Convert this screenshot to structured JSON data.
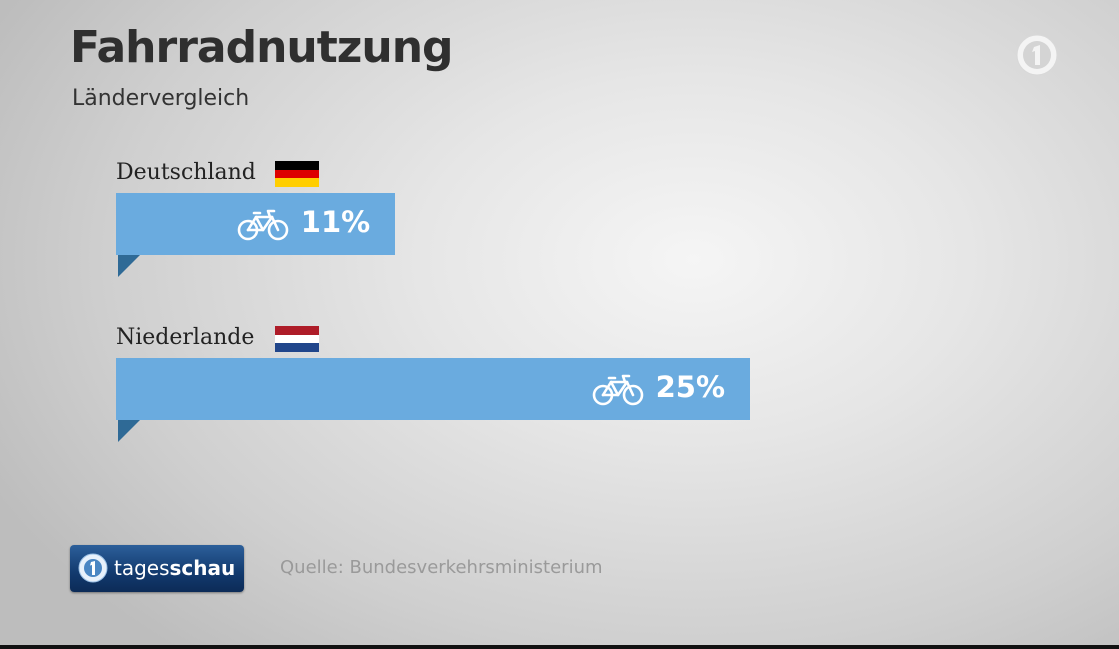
{
  "header": {
    "title": "Fahrradnutzung",
    "subtitle": "Ländervergleich"
  },
  "chart_data": {
    "type": "bar",
    "title": "Fahrradnutzung",
    "subtitle": "Ländervergleich",
    "orientation": "horizontal",
    "categories": [
      "Deutschland",
      "Niederlande"
    ],
    "values": [
      11,
      25
    ],
    "value_labels": [
      "11%",
      "25%"
    ],
    "unit": "%",
    "xlim": [
      0,
      29
    ],
    "grid": false,
    "bar_color": "#6aabdf",
    "icons": [
      "bicycle-icon",
      "flag-germany",
      "flag-netherlands"
    ]
  },
  "footer": {
    "brand_light": "tages",
    "brand_bold": "schau",
    "source": "Quelle: Bundesverkehrsministerium"
  },
  "colors": {
    "bar": "#6aabdf",
    "bar_fold": "#2f6a96",
    "title": "#2f2f2f"
  }
}
